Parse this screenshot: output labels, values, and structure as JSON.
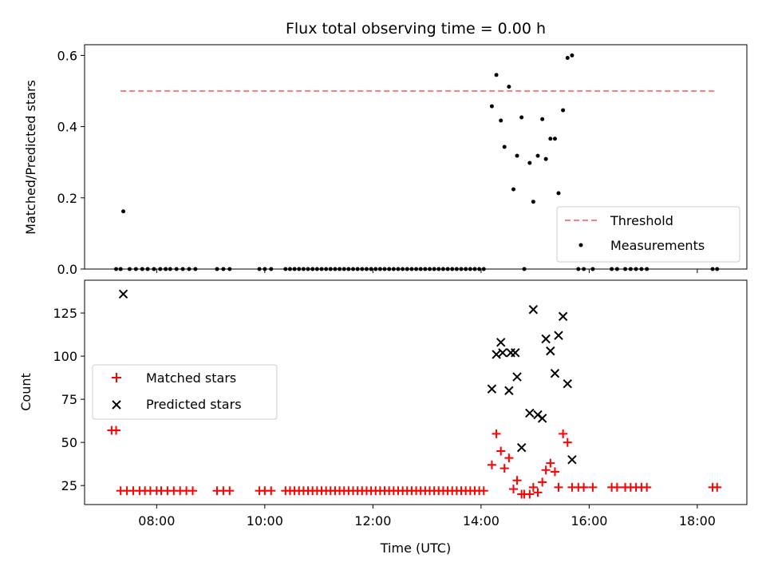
{
  "chart_data": [
    {
      "type": "scatter",
      "title": "Flux total observing time = 0.00 h",
      "xlabel": "",
      "ylabel": "Matched/Predicted stars",
      "xlim": [
        "06:40",
        "18:55"
      ],
      "ylim": [
        0,
        0.63
      ],
      "yticks": [
        "0.0",
        "0.2",
        "0.4",
        "0.6"
      ],
      "legend_position": "lower-right",
      "series": [
        {
          "name": "Threshold",
          "style": "dashed-line",
          "color": "#ff7f7f",
          "points": [
            [
              "07:20",
              0.5
            ],
            [
              "18:20",
              0.5
            ]
          ]
        },
        {
          "name": "Measurements",
          "style": "dot",
          "color": "#000000",
          "points": [
            [
              "07:15",
              0
            ],
            [
              "07:20",
              0
            ],
            [
              "07:23",
              0.162
            ],
            [
              "07:30",
              0
            ],
            [
              "07:37",
              0
            ],
            [
              "07:44",
              0
            ],
            [
              "07:50",
              0
            ],
            [
              "07:57",
              0
            ],
            [
              "08:04",
              0
            ],
            [
              "08:10",
              0
            ],
            [
              "08:15",
              0
            ],
            [
              "08:22",
              0
            ],
            [
              "08:29",
              0
            ],
            [
              "08:36",
              0
            ],
            [
              "08:43",
              0
            ],
            [
              "09:07",
              0
            ],
            [
              "09:14",
              0
            ],
            [
              "09:21",
              0
            ],
            [
              "09:54",
              0
            ],
            [
              "10:00",
              0
            ],
            [
              "10:07",
              0
            ],
            [
              "10:23",
              0
            ],
            [
              "10:28",
              0
            ],
            [
              "10:33",
              0
            ],
            [
              "10:38",
              0
            ],
            [
              "10:43",
              0
            ],
            [
              "10:48",
              0
            ],
            [
              "10:53",
              0
            ],
            [
              "10:58",
              0
            ],
            [
              "11:03",
              0
            ],
            [
              "11:08",
              0
            ],
            [
              "11:13",
              0
            ],
            [
              "11:18",
              0
            ],
            [
              "11:23",
              0
            ],
            [
              "11:28",
              0
            ],
            [
              "11:33",
              0
            ],
            [
              "11:38",
              0
            ],
            [
              "11:43",
              0
            ],
            [
              "11:48",
              0
            ],
            [
              "11:53",
              0
            ],
            [
              "11:58",
              0
            ],
            [
              "12:03",
              0
            ],
            [
              "12:08",
              0
            ],
            [
              "12:13",
              0
            ],
            [
              "12:18",
              0
            ],
            [
              "12:23",
              0
            ],
            [
              "12:28",
              0
            ],
            [
              "12:33",
              0
            ],
            [
              "12:38",
              0
            ],
            [
              "12:43",
              0
            ],
            [
              "12:48",
              0
            ],
            [
              "12:53",
              0
            ],
            [
              "12:58",
              0
            ],
            [
              "13:03",
              0
            ],
            [
              "13:08",
              0
            ],
            [
              "13:13",
              0
            ],
            [
              "13:18",
              0
            ],
            [
              "13:23",
              0
            ],
            [
              "13:28",
              0
            ],
            [
              "13:33",
              0
            ],
            [
              "13:38",
              0
            ],
            [
              "13:43",
              0
            ],
            [
              "13:48",
              0
            ],
            [
              "13:53",
              0
            ],
            [
              "13:58",
              0
            ],
            [
              "14:03",
              0
            ],
            [
              "14:12",
              0.457
            ],
            [
              "14:17",
              0.545
            ],
            [
              "14:22",
              0.417
            ],
            [
              "14:26",
              0.343
            ],
            [
              "14:31",
              0.512
            ],
            [
              "14:36",
              0.224
            ],
            [
              "14:40",
              0.318
            ],
            [
              "14:45",
              0.426
            ],
            [
              "14:48",
              0
            ],
            [
              "14:54",
              0.298
            ],
            [
              "14:58",
              0.189
            ],
            [
              "15:03",
              0.318
            ],
            [
              "15:08",
              0.421
            ],
            [
              "15:12",
              0.309
            ],
            [
              "15:17",
              0.366
            ],
            [
              "15:22",
              0.366
            ],
            [
              "15:26",
              0.213
            ],
            [
              "15:31",
              0.446
            ],
            [
              "15:36",
              0.593
            ],
            [
              "15:41",
              0.6
            ],
            [
              "15:48",
              0
            ],
            [
              "15:54",
              0
            ],
            [
              "16:04",
              0
            ],
            [
              "16:25",
              0
            ],
            [
              "16:31",
              0
            ],
            [
              "16:40",
              0
            ],
            [
              "16:46",
              0
            ],
            [
              "16:52",
              0
            ],
            [
              "16:58",
              0
            ],
            [
              "17:04",
              0
            ],
            [
              "18:17",
              0
            ],
            [
              "18:22",
              0
            ]
          ]
        }
      ]
    },
    {
      "type": "scatter",
      "title": "",
      "xlabel": "Time (UTC)",
      "ylabel": "Count",
      "xlim": [
        "06:40",
        "18:55"
      ],
      "ylim": [
        14,
        144
      ],
      "yticks": [
        "25",
        "50",
        "75",
        "100",
        "125"
      ],
      "xticks": [
        "08:00",
        "10:00",
        "12:00",
        "14:00",
        "16:00",
        "18:00"
      ],
      "legend_position": "center-left",
      "series": [
        {
          "name": "Matched stars",
          "style": "plus",
          "color": "#ff0000",
          "points": [
            [
              "07:10",
              57
            ],
            [
              "07:15",
              57
            ],
            [
              "07:20",
              22
            ],
            [
              "07:27",
              22
            ],
            [
              "07:34",
              22
            ],
            [
              "07:41",
              22
            ],
            [
              "07:47",
              22
            ],
            [
              "07:53",
              22
            ],
            [
              "08:00",
              22
            ],
            [
              "08:05",
              22
            ],
            [
              "08:12",
              22
            ],
            [
              "08:19",
              22
            ],
            [
              "08:26",
              22
            ],
            [
              "08:33",
              22
            ],
            [
              "08:40",
              22
            ],
            [
              "09:07",
              22
            ],
            [
              "09:14",
              22
            ],
            [
              "09:21",
              22
            ],
            [
              "09:54",
              22
            ],
            [
              "10:00",
              22
            ],
            [
              "10:07",
              22
            ],
            [
              "10:23",
              22
            ],
            [
              "10:28",
              22
            ],
            [
              "10:33",
              22
            ],
            [
              "10:38",
              22
            ],
            [
              "10:43",
              22
            ],
            [
              "10:48",
              22
            ],
            [
              "10:53",
              22
            ],
            [
              "10:58",
              22
            ],
            [
              "11:03",
              22
            ],
            [
              "11:08",
              22
            ],
            [
              "11:13",
              22
            ],
            [
              "11:18",
              22
            ],
            [
              "11:23",
              22
            ],
            [
              "11:28",
              22
            ],
            [
              "11:33",
              22
            ],
            [
              "11:38",
              22
            ],
            [
              "11:43",
              22
            ],
            [
              "11:48",
              22
            ],
            [
              "11:53",
              22
            ],
            [
              "11:58",
              22
            ],
            [
              "12:03",
              22
            ],
            [
              "12:08",
              22
            ],
            [
              "12:13",
              22
            ],
            [
              "12:18",
              22
            ],
            [
              "12:23",
              22
            ],
            [
              "12:28",
              22
            ],
            [
              "12:33",
              22
            ],
            [
              "12:38",
              22
            ],
            [
              "12:43",
              22
            ],
            [
              "12:48",
              22
            ],
            [
              "12:53",
              22
            ],
            [
              "12:58",
              22
            ],
            [
              "13:03",
              22
            ],
            [
              "13:08",
              22
            ],
            [
              "13:13",
              22
            ],
            [
              "13:18",
              22
            ],
            [
              "13:23",
              22
            ],
            [
              "13:28",
              22
            ],
            [
              "13:33",
              22
            ],
            [
              "13:38",
              22
            ],
            [
              "13:43",
              22
            ],
            [
              "13:48",
              22
            ],
            [
              "13:53",
              22
            ],
            [
              "13:58",
              22
            ],
            [
              "14:03",
              22
            ],
            [
              "14:12",
              37
            ],
            [
              "14:17",
              55
            ],
            [
              "14:22",
              45
            ],
            [
              "14:26",
              35
            ],
            [
              "14:31",
              41
            ],
            [
              "14:36",
              23
            ],
            [
              "14:40",
              28
            ],
            [
              "14:45",
              20
            ],
            [
              "14:48",
              20
            ],
            [
              "14:54",
              20
            ],
            [
              "14:58",
              24
            ],
            [
              "15:03",
              21
            ],
            [
              "15:08",
              27
            ],
            [
              "15:12",
              34
            ],
            [
              "15:17",
              38
            ],
            [
              "15:22",
              33
            ],
            [
              "15:26",
              24
            ],
            [
              "15:31",
              55
            ],
            [
              "15:36",
              50
            ],
            [
              "15:41",
              24
            ],
            [
              "15:48",
              24
            ],
            [
              "15:54",
              24
            ],
            [
              "16:04",
              24
            ],
            [
              "16:25",
              24
            ],
            [
              "16:31",
              24
            ],
            [
              "16:40",
              24
            ],
            [
              "16:46",
              24
            ],
            [
              "16:52",
              24
            ],
            [
              "16:58",
              24
            ],
            [
              "17:04",
              24
            ],
            [
              "18:17",
              24
            ],
            [
              "18:22",
              24
            ]
          ]
        },
        {
          "name": "Predicted stars",
          "style": "x",
          "color": "#000000",
          "points": [
            [
              "07:23",
              136
            ],
            [
              "14:12",
              81
            ],
            [
              "14:17",
              101
            ],
            [
              "14:22",
              108
            ],
            [
              "14:24",
              102
            ],
            [
              "14:31",
              80
            ],
            [
              "14:33",
              102
            ],
            [
              "14:38",
              102
            ],
            [
              "14:40",
              88
            ],
            [
              "14:45",
              47
            ],
            [
              "14:54",
              67
            ],
            [
              "14:58",
              127
            ],
            [
              "15:03",
              66
            ],
            [
              "15:08",
              64
            ],
            [
              "15:12",
              110
            ],
            [
              "15:17",
              103
            ],
            [
              "15:22",
              90
            ],
            [
              "15:26",
              112
            ],
            [
              "15:31",
              123
            ],
            [
              "15:36",
              84
            ],
            [
              "15:41",
              40
            ]
          ]
        }
      ]
    }
  ]
}
